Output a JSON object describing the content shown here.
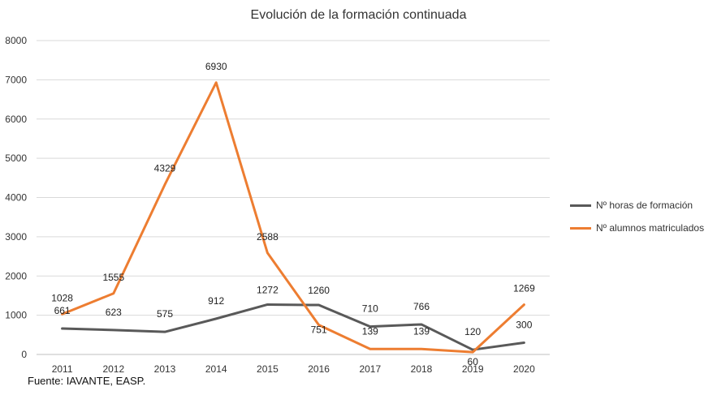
{
  "chart_data": {
    "type": "line",
    "title": "Evolución de la formación continuada",
    "categories": [
      "2011",
      "2012",
      "2013",
      "2014",
      "2015",
      "2016",
      "2017",
      "2018",
      "2019",
      "2020"
    ],
    "ylim": [
      0,
      8000
    ],
    "yticks": [
      "0",
      "1000",
      "2000",
      "3000",
      "4000",
      "5000",
      "6000",
      "7000",
      "8000"
    ],
    "grid": true,
    "legend": "right",
    "series": [
      {
        "name": "Nº horas de formación",
        "color": "#595959",
        "values": [
          661,
          623,
          575,
          912,
          1272,
          1260,
          710,
          766,
          120,
          300
        ],
        "labels": [
          "661",
          "623",
          "575",
          "912",
          "1272",
          "1260",
          "710",
          "766",
          "120",
          "300"
        ]
      },
      {
        "name": "Nº alumnos matriculados",
        "color": "#ED7D31",
        "values": [
          1028,
          1555,
          4329,
          6930,
          2588,
          751,
          139,
          139,
          60,
          1269
        ],
        "labels": [
          "1028",
          "1555",
          "4329",
          "6930",
          "2588",
          "751",
          "139",
          "139",
          "60",
          "1269"
        ]
      }
    ]
  },
  "source": "Fuente: IAVANTE, EASP."
}
